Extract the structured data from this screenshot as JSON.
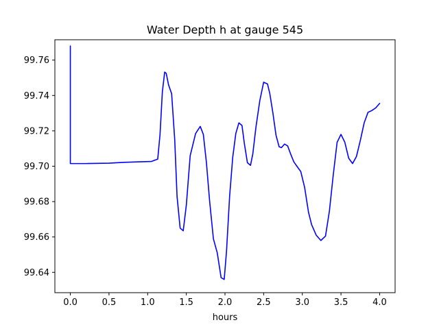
{
  "chart_data": {
    "type": "line",
    "title": "Water Depth h at gauge 545",
    "xlabel": "hours",
    "ylabel": "",
    "xlim": [
      -0.2,
      4.2
    ],
    "ylim": [
      99.6285,
      99.7715
    ],
    "xticks": [
      0.0,
      0.5,
      1.0,
      1.5,
      2.0,
      2.5,
      3.0,
      3.5,
      4.0
    ],
    "xtick_labels": [
      "0.0",
      "0.5",
      "1.0",
      "1.5",
      "2.0",
      "2.5",
      "3.0",
      "3.5",
      "4.0"
    ],
    "yticks": [
      99.64,
      99.66,
      99.68,
      99.7,
      99.72,
      99.74,
      99.76
    ],
    "ytick_labels": [
      "99.64",
      "99.66",
      "99.68",
      "99.70",
      "99.72",
      "99.74",
      "99.76"
    ],
    "grid": false,
    "series": [
      {
        "color": "#0000ff",
        "x": [
          0.0,
          0.0,
          0.001,
          0.2,
          0.5,
          0.7,
          0.9,
          1.05,
          1.13,
          1.16,
          1.19,
          1.22,
          1.24,
          1.27,
          1.31,
          1.35,
          1.38,
          1.42,
          1.46,
          1.5,
          1.55,
          1.62,
          1.68,
          1.72,
          1.76,
          1.8,
          1.85,
          1.9,
          1.95,
          1.99,
          2.02,
          2.06,
          2.1,
          2.14,
          2.18,
          2.22,
          2.25,
          2.29,
          2.33,
          2.36,
          2.4,
          2.45,
          2.5,
          2.55,
          2.58,
          2.62,
          2.66,
          2.7,
          2.73,
          2.77,
          2.81,
          2.85,
          2.89,
          2.93,
          2.98,
          3.03,
          3.08,
          3.12,
          3.18,
          3.24,
          3.3,
          3.35,
          3.4,
          3.45,
          3.5,
          3.55,
          3.6,
          3.65,
          3.7,
          3.75,
          3.8,
          3.85,
          3.9,
          3.95,
          4.0
        ],
        "values": [
          99.768,
          99.7015,
          99.7015,
          99.7015,
          99.7017,
          99.7022,
          99.7025,
          99.7027,
          99.704,
          99.718,
          99.742,
          99.7532,
          99.7525,
          99.746,
          99.741,
          99.715,
          99.683,
          99.665,
          99.6635,
          99.678,
          99.706,
          99.7185,
          99.7225,
          99.718,
          99.702,
          99.681,
          99.659,
          99.651,
          99.637,
          99.636,
          99.652,
          99.683,
          99.705,
          99.7185,
          99.7245,
          99.723,
          99.713,
          99.702,
          99.7005,
          99.707,
          99.722,
          99.737,
          99.7475,
          99.7465,
          99.741,
          99.73,
          99.7175,
          99.711,
          99.7105,
          99.7125,
          99.7115,
          99.7068,
          99.7025,
          99.7,
          99.697,
          99.688,
          99.674,
          99.667,
          99.661,
          99.658,
          99.6605,
          99.6745,
          99.695,
          99.7135,
          99.718,
          99.7135,
          99.7045,
          99.7015,
          99.7055,
          99.7145,
          99.7245,
          99.7305,
          99.7315,
          99.733,
          99.7355
        ]
      }
    ]
  }
}
